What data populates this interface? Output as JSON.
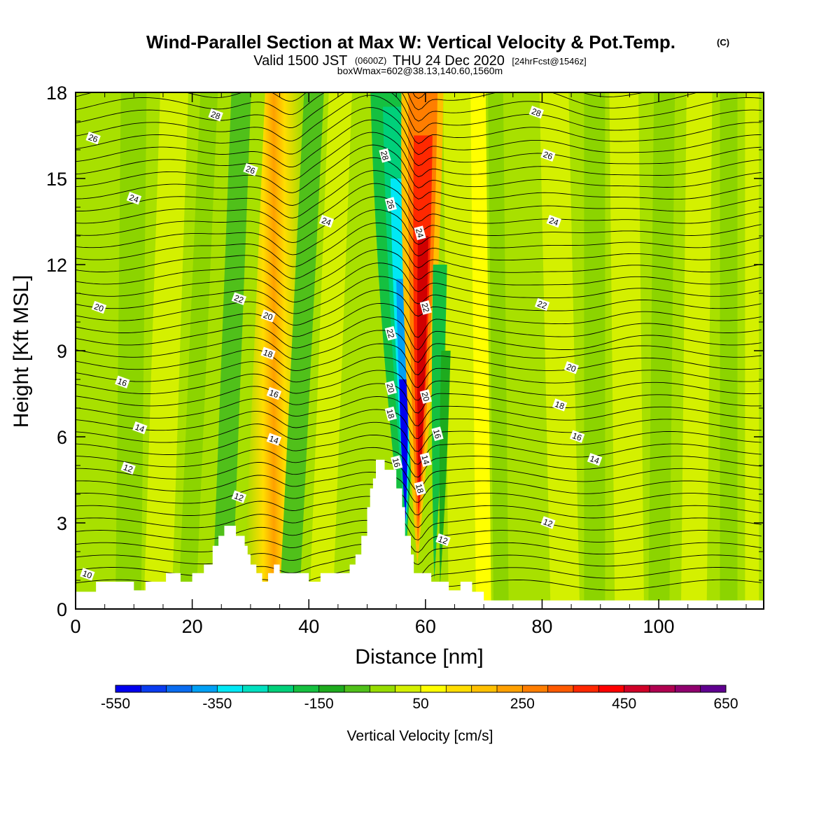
{
  "chart_data": {
    "type": "heatmap",
    "title": "Wind-Parallel Section at Max W: Vertical Velocity & Pot.Temp.",
    "title_mark": "(C)",
    "subtitle": {
      "valid": "Valid 1500 JST",
      "utc": "(0600Z)",
      "date": "THU 24 Dec 2020",
      "fcst": "[24hrFcst@1546z]",
      "box": "boxWmax=602@38.13,140.60,1560m"
    },
    "xlabel": "Distance [nm]",
    "ylabel": "Height [Kft MSL]",
    "xlim": [
      0,
      118
    ],
    "ylim": [
      0,
      18
    ],
    "x_ticks": [
      0,
      20,
      40,
      60,
      80,
      100
    ],
    "y_ticks": [
      0,
      3,
      6,
      9,
      12,
      15,
      18
    ],
    "colorbar": {
      "title": "Vertical Velocity [cm/s]",
      "min": -550,
      "max": 650,
      "step": 50,
      "tick_labels": [
        "-550",
        "-350",
        "-150",
        "50",
        "250",
        "450",
        "650"
      ],
      "colors": [
        "#0000ee",
        "#0a3cf0",
        "#0a6cf0",
        "#00a0f5",
        "#00e8f5",
        "#00e0c0",
        "#00d07a",
        "#15c040",
        "#1eab1e",
        "#50c01a",
        "#96dc00",
        "#d4f000",
        "#ffff00",
        "#ffdd00",
        "#ffc000",
        "#ffa000",
        "#ff7e00",
        "#ff5a00",
        "#ff2800",
        "#ff0000",
        "#d00028",
        "#b00050",
        "#90006e",
        "#600090"
      ]
    },
    "contour_field": "Potential temperature (deg C)",
    "contour_labels": [
      {
        "text": "28",
        "x": 24,
        "y": 17.2
      },
      {
        "text": "26",
        "x": 3,
        "y": 16.4
      },
      {
        "text": "26",
        "x": 30,
        "y": 15.3
      },
      {
        "text": "28",
        "x": 53,
        "y": 15.8
      },
      {
        "text": "26",
        "x": 54,
        "y": 14.1
      },
      {
        "text": "28",
        "x": 79,
        "y": 17.3
      },
      {
        "text": "26",
        "x": 81,
        "y": 15.8
      },
      {
        "text": "24",
        "x": 10,
        "y": 14.3
      },
      {
        "text": "24",
        "x": 43,
        "y": 13.5
      },
      {
        "text": "24",
        "x": 59,
        "y": 13.1
      },
      {
        "text": "24",
        "x": 82,
        "y": 13.5
      },
      {
        "text": "22",
        "x": 28,
        "y": 10.8
      },
      {
        "text": "20",
        "x": 4,
        "y": 10.5
      },
      {
        "text": "20",
        "x": 33,
        "y": 10.2
      },
      {
        "text": "22",
        "x": 60,
        "y": 10.5
      },
      {
        "text": "22",
        "x": 80,
        "y": 10.6
      },
      {
        "text": "22",
        "x": 54,
        "y": 9.6
      },
      {
        "text": "18",
        "x": 33,
        "y": 8.9
      },
      {
        "text": "20",
        "x": 85,
        "y": 8.4
      },
      {
        "text": "16",
        "x": 8,
        "y": 7.9
      },
      {
        "text": "16",
        "x": 34,
        "y": 7.5
      },
      {
        "text": "20",
        "x": 54,
        "y": 7.7
      },
      {
        "text": "20",
        "x": 60,
        "y": 7.4
      },
      {
        "text": "18",
        "x": 83,
        "y": 7.1
      },
      {
        "text": "18",
        "x": 54,
        "y": 6.8
      },
      {
        "text": "14",
        "x": 11,
        "y": 6.3
      },
      {
        "text": "16",
        "x": 62,
        "y": 6.1
      },
      {
        "text": "16",
        "x": 86,
        "y": 6.0
      },
      {
        "text": "14",
        "x": 34,
        "y": 5.9
      },
      {
        "text": "16",
        "x": 55,
        "y": 5.1
      },
      {
        "text": "14",
        "x": 60,
        "y": 5.2
      },
      {
        "text": "14",
        "x": 89,
        "y": 5.2
      },
      {
        "text": "12",
        "x": 9,
        "y": 4.9
      },
      {
        "text": "18",
        "x": 59,
        "y": 4.2
      },
      {
        "text": "12",
        "x": 28,
        "y": 3.9
      },
      {
        "text": "12",
        "x": 81,
        "y": 3.0
      },
      {
        "text": "12",
        "x": 63,
        "y": 2.4
      },
      {
        "text": "10",
        "x": 2,
        "y": 1.2
      }
    ],
    "terrain_kft": [
      [
        0,
        0.6
      ],
      [
        3.5,
        0.6
      ],
      [
        3.5,
        0.95
      ],
      [
        10,
        0.95
      ],
      [
        10,
        0.65
      ],
      [
        12,
        0.65
      ],
      [
        12,
        0.95
      ],
      [
        15.5,
        0.95
      ],
      [
        15.5,
        1.25
      ],
      [
        18,
        1.25
      ],
      [
        18,
        0.95
      ],
      [
        20,
        0.95
      ],
      [
        20,
        1.25
      ],
      [
        22,
        1.25
      ],
      [
        22,
        1.55
      ],
      [
        23.5,
        1.55
      ],
      [
        23.5,
        2.2
      ],
      [
        24.5,
        2.2
      ],
      [
        24.5,
        2.55
      ],
      [
        25.5,
        2.55
      ],
      [
        25.5,
        2.9
      ],
      [
        27.5,
        2.9
      ],
      [
        27.5,
        2.55
      ],
      [
        29,
        2.55
      ],
      [
        29,
        2.2
      ],
      [
        29.5,
        2.2
      ],
      [
        29.5,
        1.9
      ],
      [
        30,
        1.9
      ],
      [
        30,
        1.55
      ],
      [
        31,
        1.55
      ],
      [
        31,
        1.25
      ],
      [
        32,
        1.25
      ],
      [
        32,
        0.95
      ],
      [
        33,
        0.95
      ],
      [
        33,
        1.25
      ],
      [
        34,
        1.25
      ],
      [
        34,
        1.55
      ],
      [
        35,
        1.55
      ],
      [
        35,
        1.25
      ],
      [
        40,
        1.25
      ],
      [
        40,
        0.95
      ],
      [
        42,
        0.95
      ],
      [
        42,
        1.25
      ],
      [
        47,
        1.25
      ],
      [
        47,
        1.55
      ],
      [
        48,
        1.55
      ],
      [
        48,
        1.9
      ],
      [
        49,
        1.9
      ],
      [
        49,
        2.55
      ],
      [
        50,
        2.55
      ],
      [
        50,
        3.55
      ],
      [
        50.5,
        3.55
      ],
      [
        50.5,
        4.2
      ],
      [
        51,
        4.2
      ],
      [
        51,
        4.55
      ],
      [
        51.5,
        4.55
      ],
      [
        51.5,
        5.2
      ],
      [
        53,
        5.2
      ],
      [
        53,
        4.85
      ],
      [
        55,
        4.85
      ],
      [
        55,
        4.2
      ],
      [
        56,
        4.2
      ],
      [
        56,
        3.55
      ],
      [
        56.5,
        3.55
      ],
      [
        56.5,
        2.55
      ],
      [
        57.5,
        2.55
      ],
      [
        57.5,
        1.9
      ],
      [
        58,
        1.9
      ],
      [
        58,
        1.25
      ],
      [
        61,
        1.25
      ],
      [
        61,
        0.95
      ],
      [
        64,
        0.95
      ],
      [
        64,
        0.65
      ],
      [
        66,
        0.65
      ],
      [
        66,
        0.95
      ],
      [
        68,
        0.95
      ],
      [
        68,
        0.6
      ],
      [
        70,
        0.6
      ],
      [
        70,
        0.3
      ],
      [
        118,
        0.3
      ]
    ]
  }
}
